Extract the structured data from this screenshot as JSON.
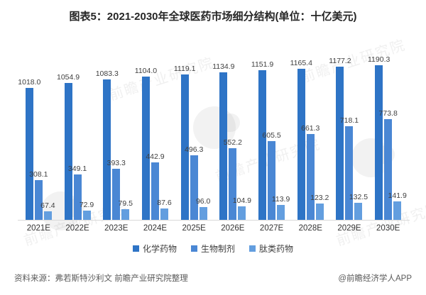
{
  "title": "图表5：2021-2030年全球医药市场细分结构(单位：十亿美元)",
  "watermark_text": "前瞻产业研究院",
  "footer": {
    "source": "资料来源：弗若斯特沙利文 前瞻产业研究院整理",
    "credit": "@前瞻经济学人APP"
  },
  "colors": {
    "series1": "#2E74C6",
    "series2": "#4A87D4",
    "series3": "#639EDF",
    "axis_line": "#D9D9D9",
    "value_label": "#404040",
    "title_text": "#262626",
    "footer_text": "#595959"
  },
  "chart_data": {
    "type": "bar",
    "title": "图表5：2021-2030年全球医药市场细分结构(单位：十亿美元)",
    "categories": [
      "2021E",
      "2022E",
      "2023E",
      "2024E",
      "2025E",
      "2026E",
      "2027E",
      "2028E",
      "2029E",
      "2030E"
    ],
    "series": [
      {
        "name": "化学药物",
        "color": "#2E74C6",
        "values": [
          1018.0,
          1054.9,
          1083.3,
          1104.0,
          1119.1,
          1134.9,
          1151.9,
          1165.4,
          1177.2,
          1190.3
        ]
      },
      {
        "name": "生物制剂",
        "color": "#4A87D4",
        "values": [
          308.1,
          349.1,
          393.3,
          442.9,
          496.3,
          552.2,
          605.5,
          661.3,
          718.1,
          773.8
        ]
      },
      {
        "name": "肽类药物",
        "color": "#639EDF",
        "values": [
          67.4,
          72.9,
          79.5,
          87.6,
          96.0,
          104.9,
          113.9,
          123.2,
          132.5,
          141.9
        ]
      }
    ],
    "xlabel": "",
    "ylabel": "",
    "ylim": [
      0,
      1365
    ],
    "grid": false,
    "value_labels": true,
    "legend_position": "bottom",
    "axis_visible": "x-only"
  }
}
